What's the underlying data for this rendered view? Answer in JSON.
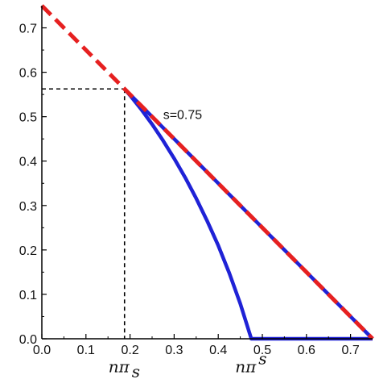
{
  "chart_data": {
    "type": "line",
    "title": "",
    "xlabel": "",
    "ylabel": "",
    "xlim": [
      0.0,
      0.75
    ],
    "ylim": [
      0.0,
      0.75
    ],
    "x_ticks": [
      "0.0",
      "0.1",
      "0.2",
      "0.3",
      "0.4",
      "0.5",
      "0.6",
      "0.7"
    ],
    "y_ticks": [
      "0.0",
      "0.1",
      "0.2",
      "0.3",
      "0.4",
      "0.5",
      "0.6",
      "0.7"
    ],
    "grid": false,
    "legend": "none",
    "series": [
      {
        "style": "dashed",
        "color": "#e62020",
        "x": [
          0.0,
          0.75
        ],
        "y": [
          0.75,
          0.0
        ]
      },
      {
        "style": "solid",
        "color": "#1f22d6",
        "x": [
          0.1875,
          0.2,
          0.225,
          0.25,
          0.275,
          0.3,
          0.325,
          0.35,
          0.375,
          0.4,
          0.425,
          0.45,
          0.475,
          0.75
        ],
        "y": [
          0.5625,
          0.548,
          0.517,
          0.483,
          0.446,
          0.406,
          0.363,
          0.316,
          0.265,
          0.21,
          0.148,
          0.079,
          0.0,
          0.0
        ]
      },
      {
        "style": "solid",
        "color": "#1f22d6",
        "x": [
          0.1875,
          0.75
        ],
        "y": [
          0.5625,
          0.0
        ]
      }
    ],
    "reference_lines": {
      "x": 0.1875,
      "y": 0.5625,
      "style": "dashed",
      "color": "#000000"
    },
    "annotations": [
      {
        "text": "s=0.75",
        "x": 0.275,
        "y": 0.495
      },
      {
        "text": "nπ",
        "sub": "s",
        "x": 0.1875,
        "y": -0.075
      },
      {
        "text": "nπ",
        "sup": "s",
        "x": 0.475,
        "y": -0.075
      }
    ]
  }
}
